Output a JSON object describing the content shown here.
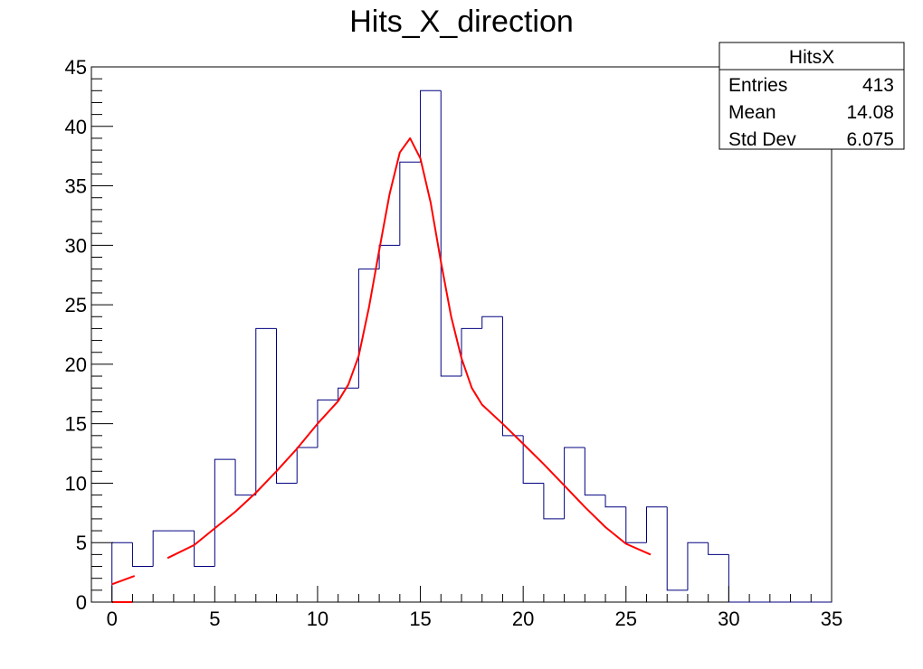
{
  "chart_data": {
    "type": "bar",
    "title": "Hits_X_direction",
    "xlabel": "",
    "ylabel": "",
    "xlim": [
      -1,
      35
    ],
    "ylim": [
      0,
      45
    ],
    "x_ticks": [
      0,
      5,
      10,
      15,
      20,
      25,
      30,
      35
    ],
    "y_ticks": [
      0,
      5,
      10,
      15,
      20,
      25,
      30,
      35,
      40,
      45
    ],
    "histogram": {
      "name": "HitsX",
      "bin_width": 1,
      "bin_edges_start": -1,
      "values": [
        0,
        5,
        3,
        6,
        6,
        3,
        12,
        9,
        23,
        10,
        13,
        17,
        18,
        28,
        30,
        37,
        43,
        19,
        23,
        24,
        14,
        10,
        7,
        13,
        9,
        8,
        5,
        8,
        1,
        5,
        4,
        0,
        0,
        0,
        0,
        0
      ],
      "color": "#000080"
    },
    "fit_curve": {
      "color": "#ff0000",
      "segments": [
        [
          [
            0,
            0
          ],
          [
            1,
            0
          ]
        ],
        [
          [
            0,
            1.5
          ],
          [
            1.1,
            2.2
          ]
        ],
        [
          [
            2.7,
            3.7
          ],
          [
            4,
            4.8
          ],
          [
            5,
            6.2
          ],
          [
            6,
            7.6
          ],
          [
            7,
            9.2
          ],
          [
            8,
            11.0
          ],
          [
            9,
            12.9
          ],
          [
            10,
            15.0
          ],
          [
            11,
            16.9
          ],
          [
            11.5,
            18.3
          ],
          [
            12,
            20.7
          ],
          [
            12.5,
            24.8
          ],
          [
            13,
            29.6
          ],
          [
            13.5,
            34.3
          ],
          [
            14,
            37.8
          ],
          [
            14.5,
            39.0
          ],
          [
            15,
            37.3
          ],
          [
            15.5,
            33.6
          ],
          [
            16,
            28.6
          ],
          [
            16.5,
            24.0
          ],
          [
            17,
            20.5
          ],
          [
            17.5,
            18.0
          ],
          [
            18,
            16.6
          ],
          [
            19,
            15.0
          ],
          [
            20,
            13.3
          ],
          [
            21,
            11.6
          ],
          [
            22,
            9.8
          ],
          [
            23,
            8.0
          ],
          [
            24,
            6.3
          ],
          [
            25,
            4.9
          ],
          [
            26.2,
            4.0
          ]
        ]
      ]
    },
    "stats_box": {
      "title": "HitsX",
      "rows": [
        {
          "label": "Entries",
          "value": "413"
        },
        {
          "label": "Mean",
          "value": "14.08"
        },
        {
          "label": "Std Dev",
          "value": "6.075"
        }
      ]
    }
  }
}
